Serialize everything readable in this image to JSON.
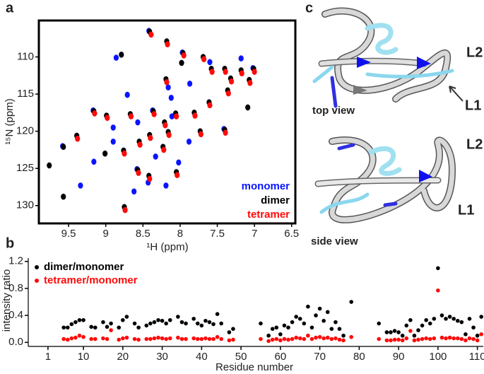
{
  "chart_data": [
    {
      "type": "scatter",
      "panel_label": "a",
      "x_label": "¹H (ppm)",
      "y_label": "¹⁵N (ppm)",
      "xlim": [
        9.9,
        6.45
      ],
      "ylim": [
        132.4,
        105.1
      ],
      "xticks": [
        9.5,
        9.0,
        8.5,
        8.0,
        7.5,
        7.0,
        6.5
      ],
      "yticks": [
        110,
        115,
        120,
        125,
        130
      ],
      "legend": "lower right",
      "frame": true,
      "series": [
        {
          "name": "monomer",
          "color": "#0a14ff",
          "x": [
            8.86,
            8.16,
            8.71,
            8.12,
            7.87,
            9.16,
            9.34,
            8.33,
            8.62,
            8.43,
            8.9,
            8.57,
            7.18,
            7.6,
            8.9,
            8.11,
            7.88,
            8.02,
            8.19,
            8.42,
            7.97,
            9.17,
            8.37,
            9.58,
            8.58,
            7.41,
            7.02
          ],
          "values": [
            110.1,
            114.1,
            115.1,
            115.5,
            113.6,
            124.1,
            127.3,
            123.4,
            128.1,
            126.9,
            121.4,
            118.8,
            110.2,
            110.7,
            119.5,
            118.0,
            121.4,
            124.2,
            127.3,
            106.5,
            109.4,
            117.2,
            117.2,
            122.0,
            125.1,
            119.7,
            111.5
          ]
        },
        {
          "name": "dimer",
          "color": "#000000",
          "x": [
            8.41,
            8.18,
            8.79,
            7.96,
            7.69,
            7.58,
            7.4,
            7.18,
            7.01,
            7.98,
            7.32,
            7.07,
            8.19,
            9.16,
            8.99,
            8.67,
            8.36,
            8.21,
            8.06,
            7.81,
            8.41,
            8.16,
            7.73,
            7.4,
            8.55,
            8.23,
            8.76,
            9.01,
            9.39,
            9.57,
            9.76,
            8.57,
            8.05,
            9.57,
            8.75,
            8.42,
            7.61,
            7.36,
            7.09
          ],
          "values": [
            106.6,
            107.9,
            109.7,
            109.5,
            110.0,
            111.6,
            111.6,
            111.8,
            111.6,
            110.8,
            112.9,
            113.1,
            113.0,
            117.3,
            117.9,
            117.7,
            117.3,
            118.8,
            117.6,
            117.5,
            120.5,
            120.1,
            120.0,
            119.8,
            121.4,
            122.1,
            122.6,
            123.0,
            120.6,
            122.1,
            124.6,
            125.2,
            125.5,
            128.8,
            130.2,
            126.0,
            116.1,
            114.5,
            116.8
          ]
        },
        {
          "name": "tetramer",
          "color": "#ff0a0a",
          "x": [
            8.39,
            8.17,
            7.95,
            7.68,
            7.57,
            7.39,
            7.17,
            7.0,
            7.31,
            7.06,
            8.18,
            9.15,
            8.98,
            8.66,
            8.35,
            8.2,
            8.05,
            7.8,
            8.4,
            8.15,
            7.72,
            7.39,
            8.54,
            8.22,
            8.75,
            9.38,
            8.56,
            8.04,
            8.74,
            8.41,
            7.6,
            7.35
          ],
          "values": [
            107.0,
            108.3,
            109.8,
            110.3,
            112.0,
            112.0,
            112.2,
            112.0,
            113.3,
            113.5,
            113.4,
            117.6,
            118.2,
            118.0,
            117.7,
            119.2,
            118.0,
            117.9,
            120.9,
            120.5,
            120.4,
            120.2,
            121.8,
            122.5,
            123.0,
            121.0,
            125.6,
            125.9,
            130.6,
            126.4,
            116.5,
            114.9
          ]
        }
      ]
    },
    {
      "type": "scatter",
      "panel_label": "b",
      "x_label": "Residue number",
      "y_label": "intensity ratio",
      "xlim": [
        -4,
        111.5
      ],
      "ylim": [
        -0.06,
        1.25
      ],
      "xticks": [
        1,
        10,
        20,
        30,
        40,
        50,
        60,
        70,
        80,
        90,
        100,
        110
      ],
      "yticks": [
        {
          "value": 0,
          "label": "0.0"
        },
        0.4,
        0.8,
        1.2
      ],
      "legend": "upper left",
      "frame": false,
      "x": [
        5,
        6,
        7,
        8,
        9,
        10,
        12,
        13,
        15,
        16,
        17,
        19,
        20,
        21,
        23,
        24,
        26,
        27,
        28,
        29,
        30,
        31,
        32,
        34,
        35,
        36,
        38,
        39,
        40,
        41,
        42,
        43,
        44,
        45,
        47,
        48,
        55,
        57,
        58,
        59,
        60,
        61,
        62,
        63,
        64,
        65,
        66,
        67,
        68,
        69,
        70,
        71,
        72,
        73,
        74,
        75,
        76,
        78,
        85,
        87,
        88,
        89,
        90,
        91,
        92,
        93,
        94,
        95,
        96,
        97,
        98,
        99,
        100,
        101,
        102,
        103,
        104,
        105,
        106,
        107,
        108,
        109,
        110,
        111
      ],
      "series": [
        {
          "name": "dimer/monomer",
          "color": "#000000",
          "values": [
            0.22,
            0.22,
            0.27,
            0.3,
            0.33,
            0.33,
            0.23,
            0.22,
            0.3,
            0.23,
            0.28,
            0.22,
            0.33,
            0.38,
            0.28,
            0.22,
            0.25,
            0.28,
            0.3,
            0.33,
            0.32,
            0.28,
            0.33,
            0.38,
            0.3,
            0.28,
            0.35,
            0.28,
            0.25,
            0.32,
            0.3,
            0.27,
            0.42,
            0.28,
            0.15,
            0.2,
            0.28,
            0.1,
            0.2,
            0.22,
            0.12,
            0.25,
            0.22,
            0.3,
            0.38,
            0.35,
            0.28,
            0.53,
            0.22,
            0.4,
            0.5,
            0.32,
            0.45,
            0.2,
            0.3,
            0.2,
            0.1,
            0.6,
            0.28,
            0.15,
            0.15,
            0.17,
            0.15,
            0.1,
            0.25,
            0.33,
            0.1,
            0.18,
            0.25,
            0.33,
            0.28,
            0.35,
            1.1,
            0.4,
            0.35,
            0.38,
            0.35,
            0.32,
            0.3,
            0.12,
            0.35,
            0.22,
            0.1,
            0.38
          ]
        },
        {
          "name": "tetramer/monomer",
          "color": "#ff0a0a",
          "values": [
            0.05,
            0.04,
            0.06,
            0.07,
            0.1,
            0.08,
            0.05,
            0.05,
            0.06,
            0.05,
            0.18,
            0.04,
            0.06,
            0.07,
            0.05,
            0.04,
            0.05,
            0.05,
            0.06,
            0.07,
            0.06,
            0.05,
            0.06,
            0.07,
            0.05,
            0.05,
            0.06,
            0.05,
            0.05,
            0.06,
            0.05,
            0.05,
            0.08,
            0.05,
            0.03,
            0.04,
            0.05,
            0.02,
            0.04,
            0.05,
            0.03,
            0.05,
            0.04,
            0.05,
            0.07,
            0.06,
            0.05,
            0.1,
            0.05,
            0.07,
            0.08,
            0.06,
            0.07,
            0.05,
            0.06,
            0.04,
            0.03,
            0.08,
            0.05,
            0.03,
            0.03,
            0.04,
            0.04,
            0.03,
            0.06,
            0.17,
            0.03,
            0.04,
            0.05,
            0.06,
            0.05,
            0.06,
            0.77,
            0.07,
            0.06,
            0.07,
            0.06,
            0.06,
            0.05,
            0.03,
            0.06,
            0.05,
            0.03,
            0.12
          ]
        }
      ]
    }
  ],
  "structure": {
    "panel_label": "c",
    "views": [
      {
        "caption": "top view",
        "loops": [
          "L2",
          "L1"
        ]
      },
      {
        "caption": "side view",
        "loops": [
          "L2",
          "L1"
        ]
      }
    ]
  }
}
